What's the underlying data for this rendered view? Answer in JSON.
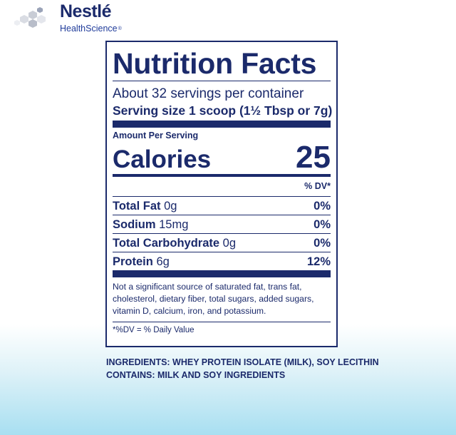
{
  "brand": {
    "name": "Nestlé",
    "sub": "HealthScience",
    "reg": "®"
  },
  "nutrition": {
    "title": "Nutrition Facts",
    "servings": "About 32 servings per container",
    "serving_size": "Serving size  1 scoop (1½ Tbsp or 7g)",
    "amount_per_serving": "Amount Per Serving",
    "calories_label": "Calories",
    "calories_value": "25",
    "dv_header": "% DV*",
    "rows": [
      {
        "name": "Total Fat",
        "amount": "0g",
        "dv": "0%"
      },
      {
        "name": "Sodium",
        "amount": "15mg",
        "dv": "0%"
      },
      {
        "name": "Total Carbohydrate",
        "amount": "0g",
        "dv": "0%"
      },
      {
        "name": "Protein",
        "amount": "6g",
        "dv": "12%"
      }
    ],
    "footnote": "Not a significant source of saturated fat, trans fat, cholesterol, dietary fiber, total sugars, added sugars, vitamin D, calcium, iron, and potassium.",
    "dv_note": "*%DV = % Daily Value"
  },
  "ingredients": {
    "line1": "INGREDIENTS: WHEY PROTEIN ISOLATE (MILK), SOY LECITHIN",
    "line2": "CONTAINS: MILK AND SOY INGREDIENTS"
  },
  "colors": {
    "navy": "#1b2a6b",
    "logo_gray": "#c9cdd6"
  }
}
